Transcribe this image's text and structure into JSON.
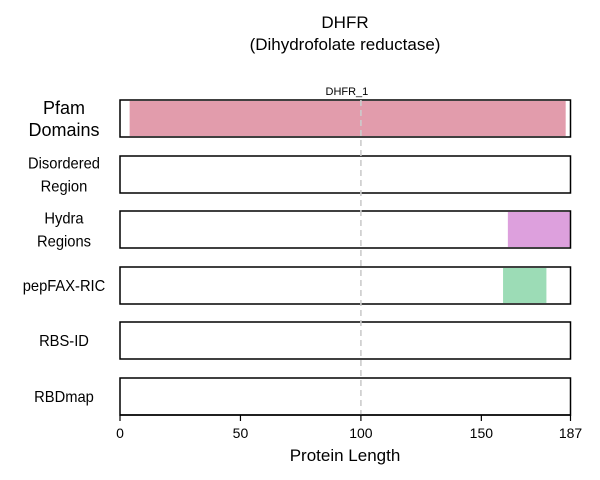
{
  "chart_data": {
    "type": "bar",
    "title": "DHFR",
    "subtitle": "(Dihydrofolate reductase)",
    "xlabel": "Protein Length",
    "xlim": [
      0,
      187
    ],
    "x_ticks": [
      0,
      50,
      100,
      150,
      187
    ],
    "reference_line": {
      "x": 100,
      "style": "dashed",
      "color": "#cccccc"
    },
    "tracks": [
      {
        "label": [
          "Pfam",
          "Domains"
        ],
        "segments": [
          {
            "start": 4,
            "end": 185,
            "color": "#e29cac",
            "label": "DHFR_1"
          }
        ]
      },
      {
        "label": [
          "Disordered",
          "Region"
        ],
        "segments": []
      },
      {
        "label": [
          "Hydra",
          "Regions"
        ],
        "segments": [
          {
            "start": 161,
            "end": 187,
            "color": "#dda0dd"
          }
        ]
      },
      {
        "label": [
          "pepFAX-RIC"
        ],
        "segments": [
          {
            "start": 159,
            "end": 177,
            "color": "#9cdcb6"
          }
        ]
      },
      {
        "label": [
          "RBS-ID"
        ],
        "segments": []
      },
      {
        "label": [
          "RBDmap"
        ],
        "segments": []
      }
    ]
  }
}
